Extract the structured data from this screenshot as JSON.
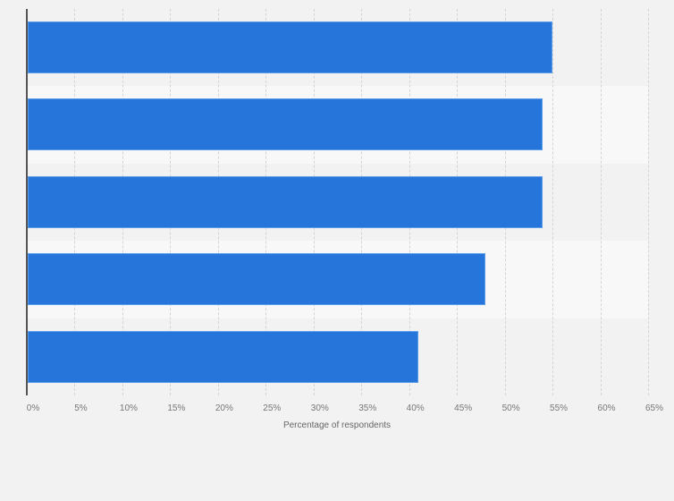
{
  "chart_data": {
    "type": "bar",
    "orientation": "horizontal",
    "title": "",
    "xlabel": "Percentage of respondents",
    "ylabel": "",
    "categories": [
      "",
      "",
      "",
      "",
      ""
    ],
    "values": [
      55,
      54,
      54,
      48,
      41
    ],
    "xlim": [
      0,
      65
    ],
    "x_ticks": [
      "0%",
      "5%",
      "10%",
      "15%",
      "20%",
      "25%",
      "30%",
      "35%",
      "40%",
      "45%",
      "50%",
      "55%",
      "60%",
      "65%"
    ],
    "grid": true,
    "legend": null,
    "bar_color": "#2675db"
  },
  "colors": {
    "background": "#f2f2f2",
    "band_alt": "#f8f8f8",
    "bar": "#2675db"
  }
}
